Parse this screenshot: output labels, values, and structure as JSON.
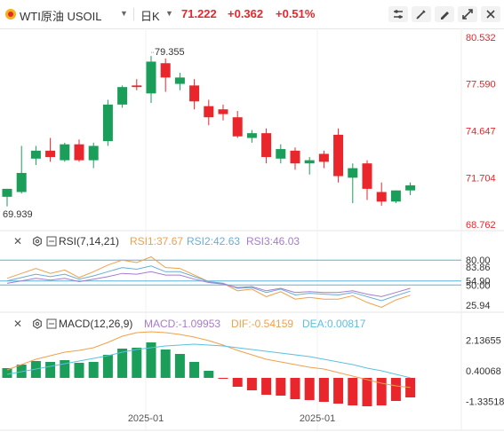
{
  "toolbar": {
    "symbol": "WTI原油",
    "code": "USOIL",
    "period": "日K",
    "price": "71.222",
    "change": "+0.362",
    "change_pct": "+0.51%",
    "buttons": [
      "indicator-settings-icon",
      "drawing-tools-icon",
      "draw-pen-icon",
      "fullscreen-icon",
      "close-icon"
    ]
  },
  "colors": {
    "up": "#e8262b",
    "down": "#1a9e5a",
    "rsi1": "#f0a04b",
    "rsi2": "#6aaed6",
    "rsi3": "#a67bd0",
    "dif": "#f0a04b",
    "dea": "#5bc0de"
  },
  "price_axis": {
    "ticks": [
      "80.532",
      "77.590",
      "74.647",
      "71.704",
      "68.762"
    ],
    "high_label": "79.355",
    "low_label": "69.939"
  },
  "rsi": {
    "label": "RSI(7,14,21)",
    "rsi1": "RSI1:37.67",
    "rsi2": "RSI2:42.63",
    "rsi3": "RSI3:46.03",
    "ticks": [
      "80.00",
      "83.86",
      "54.90",
      "50.00",
      "25.94"
    ]
  },
  "macd": {
    "label": "MACD(12,26,9)",
    "macd": "MACD:-1.09953",
    "dif": "DIF:-0.54159",
    "dea": "DEA:0.00817",
    "ticks": [
      "2.13655",
      "0.40068",
      "-1.33518"
    ]
  },
  "x_axis": {
    "labels": [
      "2025-01",
      "2025-01"
    ]
  },
  "chart_data": {
    "type": "candlestick",
    "price_range": [
      68.762,
      80.532
    ],
    "candles": [
      {
        "o": 70.5,
        "h": 71.0,
        "l": 69.9,
        "c": 71.0
      },
      {
        "o": 70.8,
        "h": 73.7,
        "l": 70.7,
        "c": 72.0
      },
      {
        "o": 72.9,
        "h": 73.7,
        "l": 72.5,
        "c": 73.4
      },
      {
        "o": 73.4,
        "h": 74.2,
        "l": 72.7,
        "c": 73.0
      },
      {
        "o": 72.8,
        "h": 73.9,
        "l": 72.7,
        "c": 73.8
      },
      {
        "o": 73.8,
        "h": 74.1,
        "l": 72.7,
        "c": 72.8
      },
      {
        "o": 72.8,
        "h": 73.9,
        "l": 72.3,
        "c": 73.7
      },
      {
        "o": 74.0,
        "h": 76.6,
        "l": 73.7,
        "c": 76.3
      },
      {
        "o": 76.3,
        "h": 77.5,
        "l": 76.1,
        "c": 77.4
      },
      {
        "o": 77.5,
        "h": 77.9,
        "l": 77.2,
        "c": 77.4
      },
      {
        "o": 77.0,
        "h": 79.355,
        "l": 76.4,
        "c": 79.0
      },
      {
        "o": 78.9,
        "h": 79.2,
        "l": 77.1,
        "c": 78.0
      },
      {
        "o": 77.6,
        "h": 78.3,
        "l": 77.2,
        "c": 78.0
      },
      {
        "o": 77.5,
        "h": 77.9,
        "l": 76.0,
        "c": 76.5
      },
      {
        "o": 76.2,
        "h": 76.6,
        "l": 75.0,
        "c": 75.5
      },
      {
        "o": 76.0,
        "h": 76.3,
        "l": 75.3,
        "c": 75.7
      },
      {
        "o": 75.5,
        "h": 75.9,
        "l": 74.2,
        "c": 74.3
      },
      {
        "o": 74.2,
        "h": 74.7,
        "l": 73.9,
        "c": 74.5
      },
      {
        "o": 74.5,
        "h": 74.8,
        "l": 72.6,
        "c": 73.0
      },
      {
        "o": 72.9,
        "h": 73.8,
        "l": 72.6,
        "c": 73.5
      },
      {
        "o": 73.4,
        "h": 73.6,
        "l": 72.2,
        "c": 72.6
      },
      {
        "o": 72.6,
        "h": 73.0,
        "l": 71.9,
        "c": 72.8
      },
      {
        "o": 73.2,
        "h": 73.4,
        "l": 72.3,
        "c": 72.7
      },
      {
        "o": 74.4,
        "h": 74.8,
        "l": 71.4,
        "c": 71.8
      },
      {
        "o": 71.7,
        "h": 72.6,
        "l": 70.1,
        "c": 72.3
      },
      {
        "o": 72.6,
        "h": 72.8,
        "l": 70.3,
        "c": 71.0
      },
      {
        "o": 70.8,
        "h": 71.4,
        "l": 69.939,
        "c": 70.2
      },
      {
        "o": 70.2,
        "h": 70.9,
        "l": 70.1,
        "c": 70.9
      },
      {
        "o": 70.9,
        "h": 71.4,
        "l": 70.6,
        "c": 71.222
      }
    ],
    "rsi_range": [
      15,
      92
    ],
    "rsi1": [
      58,
      64,
      70,
      64,
      68,
      59,
      66,
      74,
      80,
      77,
      84,
      71,
      70,
      62,
      54,
      52,
      43,
      45,
      36,
      42,
      33,
      35,
      33,
      33,
      37,
      29,
      23,
      32,
      37.67
    ],
    "rsi2": [
      55,
      59,
      63,
      60,
      63,
      57,
      61,
      66,
      71,
      69,
      73,
      66,
      66,
      60,
      54,
      52,
      46,
      47,
      41,
      45,
      38,
      40,
      39,
      38,
      41,
      36,
      31,
      37,
      42.63
    ],
    "rsi3": [
      52,
      55,
      58,
      56,
      58,
      54,
      57,
      60,
      64,
      63,
      66,
      62,
      62,
      57,
      53,
      51,
      47,
      48,
      43,
      46,
      41,
      42,
      41,
      41,
      43,
      39,
      36,
      41,
      46.03
    ],
    "macd_range": [
      -1.9,
      2.6
    ],
    "macd_hist": [
      0.55,
      0.75,
      0.95,
      0.9,
      1.0,
      0.85,
      0.9,
      1.3,
      1.65,
      1.7,
      2.0,
      1.6,
      1.35,
      0.9,
      0.4,
      -0.05,
      -0.5,
      -0.7,
      -0.95,
      -1.0,
      -1.2,
      -1.25,
      -1.35,
      -1.45,
      -1.55,
      -1.6,
      -1.55,
      -1.3,
      -1.09953
    ],
    "dif": [
      0.45,
      0.75,
      1.05,
      1.25,
      1.45,
      1.55,
      1.7,
      2.0,
      2.35,
      2.55,
      2.6,
      2.55,
      2.45,
      2.3,
      2.1,
      1.85,
      1.55,
      1.3,
      1.05,
      0.9,
      0.75,
      0.6,
      0.5,
      0.3,
      0.1,
      -0.1,
      -0.3,
      -0.45,
      -0.54159
    ],
    "dea": [
      0.2,
      0.35,
      0.5,
      0.65,
      0.8,
      0.95,
      1.1,
      1.25,
      1.45,
      1.6,
      1.7,
      1.8,
      1.85,
      1.9,
      1.85,
      1.8,
      1.7,
      1.6,
      1.5,
      1.4,
      1.3,
      1.2,
      1.05,
      0.9,
      0.75,
      0.55,
      0.4,
      0.2,
      0.00817
    ]
  }
}
